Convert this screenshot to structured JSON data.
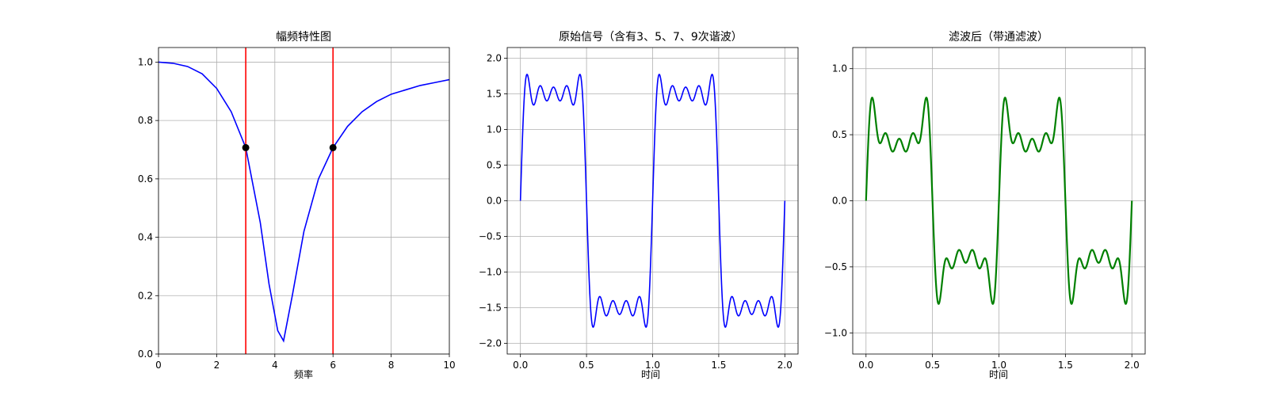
{
  "chart_data": [
    {
      "type": "line",
      "title": "幅频特性图",
      "xlabel": "频率",
      "ylabel": "",
      "xlim": [
        0,
        10
      ],
      "ylim": [
        0,
        1.05
      ],
      "xticks": [
        0,
        2,
        4,
        6,
        8,
        10
      ],
      "xtick_labels": [
        "0",
        "2",
        "4",
        "6",
        "8",
        "10"
      ],
      "yticks": [
        0.0,
        0.2,
        0.4,
        0.6,
        0.8,
        1.0
      ],
      "ytick_labels": [
        "0.0",
        "0.2",
        "0.4",
        "0.6",
        "0.8",
        "1.0"
      ],
      "grid": true,
      "series": [
        {
          "kind": "line",
          "color": "#0000ff",
          "x": [
            0,
            0.5,
            1,
            1.5,
            2,
            2.5,
            3,
            3.5,
            3.8,
            4.1,
            4.3,
            4.6,
            5,
            5.5,
            6,
            6.5,
            7,
            7.5,
            8,
            8.5,
            9,
            9.5,
            10
          ],
          "y": [
            1.0,
            0.996,
            0.985,
            0.96,
            0.91,
            0.83,
            0.707,
            0.45,
            0.24,
            0.08,
            0.045,
            0.2,
            0.42,
            0.6,
            0.707,
            0.78,
            0.83,
            0.865,
            0.89,
            0.905,
            0.92,
            0.93,
            0.94
          ]
        }
      ],
      "vlines": [
        {
          "x": 3,
          "color": "#ff0000"
        },
        {
          "x": 6,
          "color": "#ff0000"
        }
      ],
      "points": [
        {
          "x": 3,
          "y": 0.707,
          "color": "#000000"
        },
        {
          "x": 6,
          "y": 0.707,
          "color": "#000000"
        }
      ]
    },
    {
      "type": "line",
      "title": "原始信号（含有3、5、7、9次谐波）",
      "xlabel": "时间",
      "ylabel": "",
      "xlim": [
        -0.1,
        2.1
      ],
      "ylim": [
        -2.15,
        2.15
      ],
      "xticks": [
        0.0,
        0.5,
        1.0,
        1.5,
        2.0
      ],
      "xtick_labels": [
        "0.0",
        "0.5",
        "1.0",
        "1.5",
        "2.0"
      ],
      "yticks": [
        -2.0,
        -1.5,
        -1.0,
        -0.5,
        0.0,
        0.5,
        1.0,
        1.5,
        2.0
      ],
      "ytick_labels": [
        "−2.0",
        "−1.5",
        "−1.0",
        "−0.5",
        "0.0",
        "0.5",
        "1.0",
        "1.5",
        "2.0"
      ],
      "grid": true,
      "series": [
        {
          "kind": "function",
          "color": "#0000ff",
          "x_range": [
            0,
            2
          ],
          "samples": 1200,
          "formula": "square-wave Fourier sum",
          "harmonics": [
            {
              "n": 1,
              "amp": 1.273
            },
            {
              "n": 3,
              "amp": 0.424
            },
            {
              "n": 5,
              "amp": 0.255
            },
            {
              "n": 7,
              "amp": 0.182
            },
            {
              "n": 9,
              "amp": 0.141
            }
          ],
          "frequency": 1,
          "gain": 1.5
        }
      ]
    },
    {
      "type": "line",
      "title": "滤波后（带通滤波）",
      "xlabel": "时间",
      "ylabel": "",
      "xlim": [
        -0.1,
        2.1
      ],
      "ylim": [
        -1.16,
        1.16
      ],
      "xticks": [
        0.0,
        0.5,
        1.0,
        1.5,
        2.0
      ],
      "xtick_labels": [
        "0.0",
        "0.5",
        "1.0",
        "1.5",
        "2.0"
      ],
      "yticks": [
        -1.0,
        -0.5,
        0.0,
        0.5,
        1.0
      ],
      "ytick_labels": [
        "−1.0",
        "−0.5",
        "0.0",
        "0.5",
        "1.0"
      ],
      "grid": true,
      "series": [
        {
          "kind": "function",
          "color": "#008000",
          "x_range": [
            0,
            2
          ],
          "samples": 1200,
          "formula": "band-passed square wave",
          "harmonics": [
            {
              "n": 1,
              "amp": 0.6
            },
            {
              "n": 3,
              "amp": 0.3
            },
            {
              "n": 5,
              "amp": 0.2
            },
            {
              "n": 7,
              "amp": 0.14
            },
            {
              "n": 9,
              "amp": 0.11
            }
          ],
          "frequency": 1,
          "gain": 1.0
        }
      ]
    }
  ]
}
